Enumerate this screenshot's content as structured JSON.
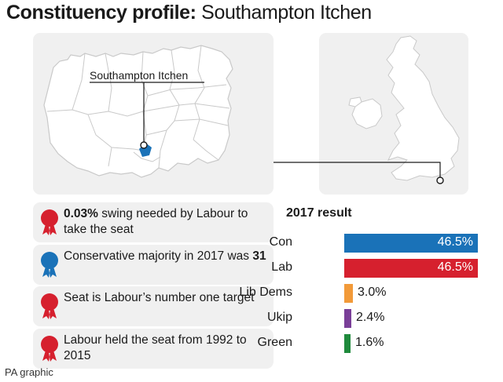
{
  "title": {
    "bold": "Constituency profile:",
    "light": "Southampton Itchen"
  },
  "map": {
    "label": "Southampton Itchen",
    "region_icon": "hampshire-county-map",
    "uk_icon": "great-britain-map"
  },
  "facts": [
    {
      "icon": "red-rosette-icon",
      "color": "#d6202e",
      "bold": "0.03%",
      "pre": "",
      "post": " swing needed by Labour to take the seat"
    },
    {
      "icon": "blue-rosette-icon",
      "color": "#1a72b8",
      "bold": "31",
      "pre": "Conservative majority in 2017 was ",
      "post": ""
    },
    {
      "icon": "red-rosette-icon",
      "color": "#d6202e",
      "bold": "",
      "pre": "Seat is Labour’s number one target",
      "post": ""
    },
    {
      "icon": "red-rosette-icon",
      "color": "#d6202e",
      "bold": "",
      "pre": "Labour held the seat from 1992 to 2015",
      "post": ""
    }
  ],
  "chart_data": {
    "type": "bar",
    "title": "2017 result",
    "categories": [
      "Con",
      "Lab",
      "Lib Dems",
      "Ukip",
      "Green"
    ],
    "values": [
      46.5,
      46.5,
      3.0,
      2.4,
      1.6
    ],
    "value_labels": [
      "46.5%",
      "46.5%",
      "3.0%",
      "2.4%",
      "1.6%"
    ],
    "colors": [
      "#1a72b8",
      "#d6202e",
      "#f29a39",
      "#7a3f98",
      "#1f8a3c"
    ],
    "xlim": [
      0,
      46.5
    ],
    "orientation": "horizontal"
  },
  "credit": "PA graphic",
  "colors": {
    "panel": "#f0f0f0",
    "map_fill": "#ffffff",
    "map_line": "#c9c9c9",
    "highlight": "#1a72b8"
  }
}
